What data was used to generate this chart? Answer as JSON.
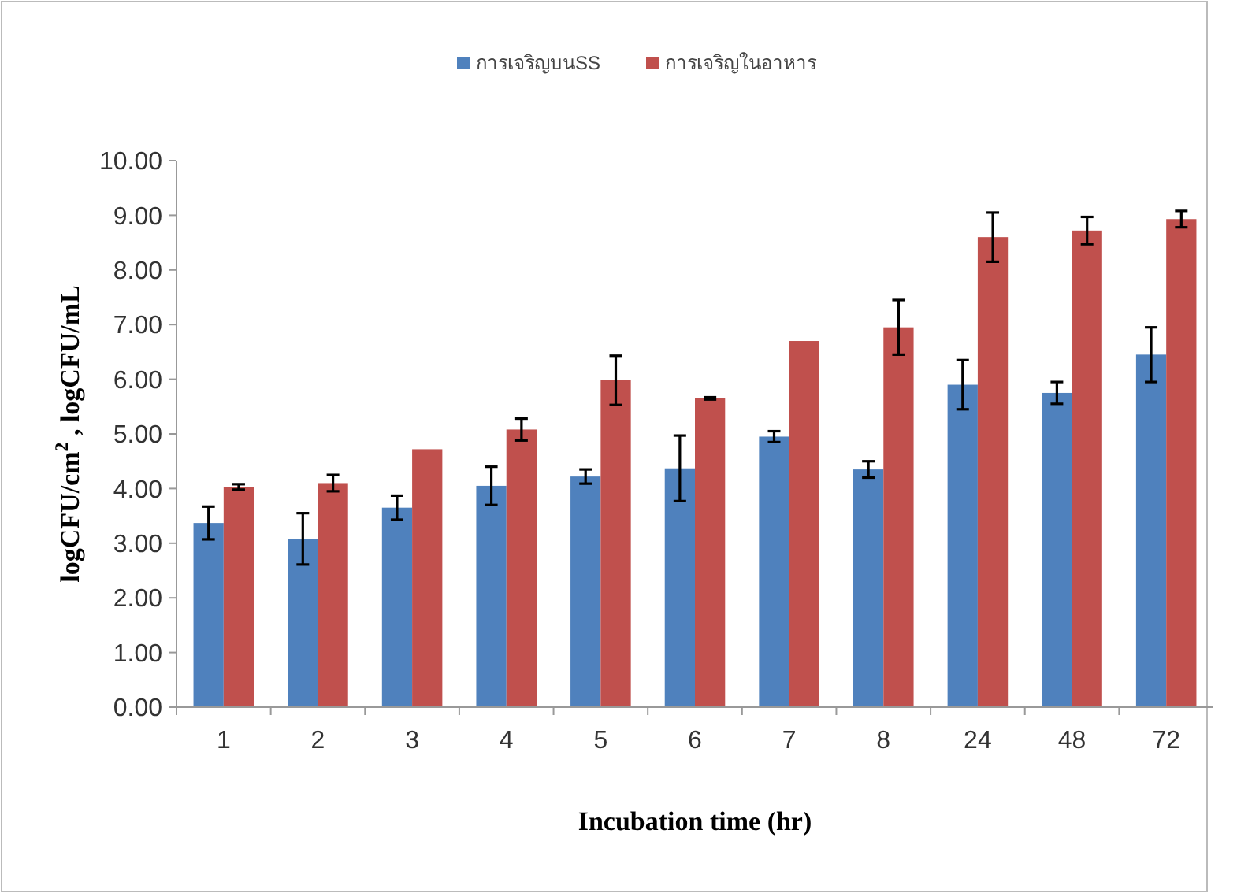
{
  "chart_data": {
    "type": "bar",
    "xlabel": "Incubation time (hr)",
    "ylabel": "logCFU/cm$^{2}$ , logCFU/mL",
    "categories": [
      "1",
      "2",
      "3",
      "4",
      "5",
      "6",
      "7",
      "8",
      "24",
      "48",
      "72"
    ],
    "series": [
      {
        "name": "การเจริญบนSS",
        "color": "#4f81bd",
        "values": [
          3.37,
          3.08,
          3.65,
          4.05,
          4.22,
          4.37,
          4.95,
          4.35,
          5.9,
          5.75,
          6.45
        ],
        "errors": [
          0.3,
          0.47,
          0.22,
          0.35,
          0.13,
          0.6,
          0.1,
          0.15,
          0.45,
          0.2,
          0.5
        ]
      },
      {
        "name": "การเจริญในอาหาร",
        "color": "#c0504d",
        "values": [
          4.03,
          4.1,
          4.72,
          5.08,
          5.98,
          5.65,
          6.7,
          6.95,
          8.6,
          8.72,
          8.93
        ],
        "errors": [
          0.05,
          0.15,
          null,
          0.2,
          0.45,
          0.02,
          null,
          0.5,
          0.45,
          0.25,
          0.15
        ]
      }
    ],
    "ylim": [
      0,
      10
    ],
    "yticks": [
      {
        "value": 0,
        "label": "0.00"
      },
      {
        "value": 1,
        "label": "1.00"
      },
      {
        "value": 2,
        "label": "2.00"
      },
      {
        "value": 3,
        "label": "3.00"
      },
      {
        "value": 4,
        "label": "4.00"
      },
      {
        "value": 5,
        "label": "5.00"
      },
      {
        "value": 6,
        "label": "6.00"
      },
      {
        "value": 7,
        "label": "7.00"
      },
      {
        "value": 8,
        "label": "8.00"
      },
      {
        "value": 9,
        "label": "9.00"
      },
      {
        "value": 10,
        "label": "10.00"
      }
    ],
    "legend": "top"
  }
}
